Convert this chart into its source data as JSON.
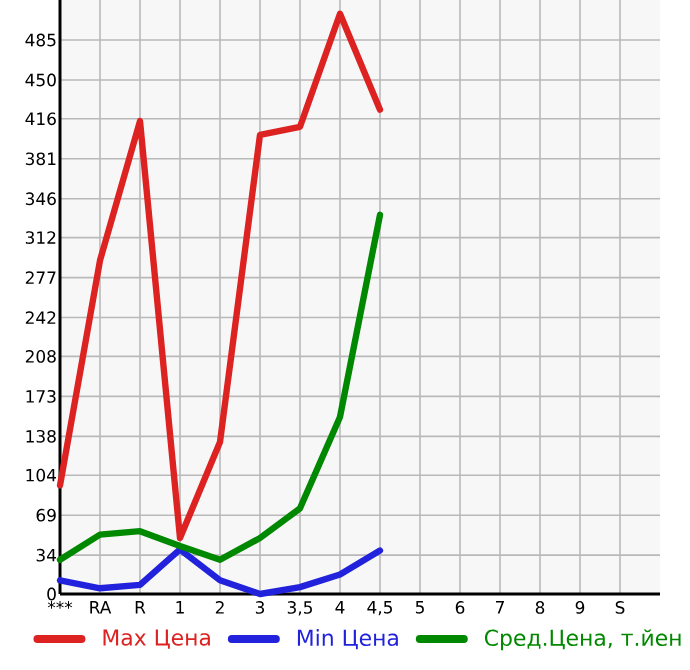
{
  "chart_data": {
    "type": "line",
    "categories": [
      "***",
      "RA",
      "R",
      "1",
      "2",
      "3",
      "3,5",
      "4",
      "4,5",
      "5",
      "6",
      "7",
      "8",
      "9",
      "S"
    ],
    "series": [
      {
        "name": "Max Цена",
        "color": "#dd2222",
        "values": [
          95,
          292,
          414,
          49,
          133,
          402,
          409,
          508,
          424,
          null,
          null,
          null,
          null,
          null,
          null
        ]
      },
      {
        "name": "Min Цена",
        "color": "#2222dd",
        "values": [
          12,
          5,
          8,
          39,
          12,
          0,
          6,
          17,
          38,
          null,
          null,
          null,
          null,
          null,
          null
        ]
      },
      {
        "name": "Сред.Цена, т.йен",
        "color": "#008800",
        "values": [
          30,
          52,
          55,
          42,
          30,
          49,
          75,
          155,
          332,
          null,
          null,
          null,
          null,
          null,
          null
        ]
      }
    ],
    "ylim": [
      0,
      520
    ],
    "yticks": [
      0,
      34,
      69,
      104,
      138,
      173,
      208,
      242,
      277,
      312,
      346,
      381,
      416,
      450,
      485
    ],
    "grid": true,
    "legend": "bottom",
    "line_style": "solid"
  }
}
